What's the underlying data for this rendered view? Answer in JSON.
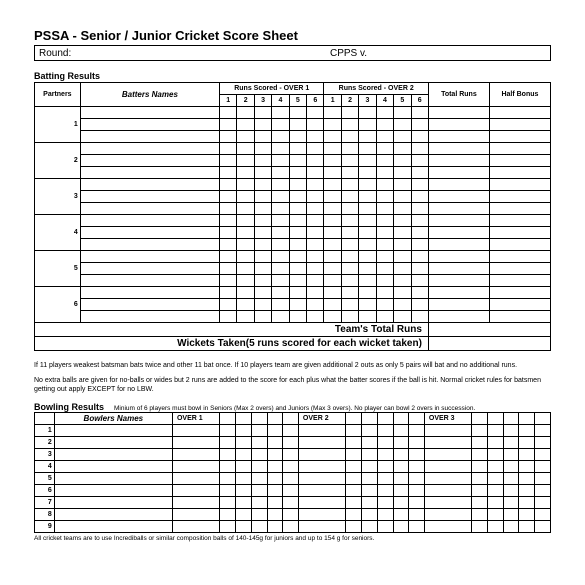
{
  "title": "PSSA - Senior / Junior Cricket Score Sheet",
  "round_label": "Round:",
  "round_value": "",
  "cpps_label": "CPPS v.",
  "batting": {
    "section_title": "Batting Results",
    "partners_header": "Partners",
    "names_header": "Batters Names",
    "over1_header": "Runs Scored - OVER 1",
    "over2_header": "Runs Scored - OVER 2",
    "total_header": "Total Runs",
    "bonus_header": "Half Bonus",
    "ball_nums": [
      "1",
      "2",
      "3",
      "4",
      "5",
      "6"
    ],
    "partner_nums": [
      "1",
      "2",
      "3",
      "4",
      "5",
      "6"
    ],
    "team_total_label": "Team's Total Runs",
    "wickets_label": "Wickets Taken(5 runs scored for each wicket taken)"
  },
  "rules": {
    "p1": "If 11 players weakest batsman bats twice and other 11 bat once. If 10 players team are given additional 2 outs as only 5 pairs will bat and no additional  runs.",
    "p2": "No extra balls are given for no-balls or wides but 2 runs are added to the score for each plus what the batter scores if the ball is hit. Normal cricket rules for batsmen getting out apply EXCEPT for no LBW."
  },
  "bowling": {
    "section_title": "Bowling Results",
    "note": "Minium of 6 players must bowl in Seniors (Max 2 overs) and Juniors (Max 3 overs). No player can bowl 2 overs in succession.",
    "names_header": "Bowlers Names",
    "over_headers": [
      "OVER 1",
      "OVER 2",
      "OVER 3"
    ],
    "row_nums": [
      "1",
      "2",
      "3",
      "4",
      "5",
      "6",
      "7",
      "8",
      "9"
    ]
  },
  "footnote": "All cricket teams are to use Incrediballs or similar composition balls of 140-145g  for juniors and up to 154 g for seniors."
}
